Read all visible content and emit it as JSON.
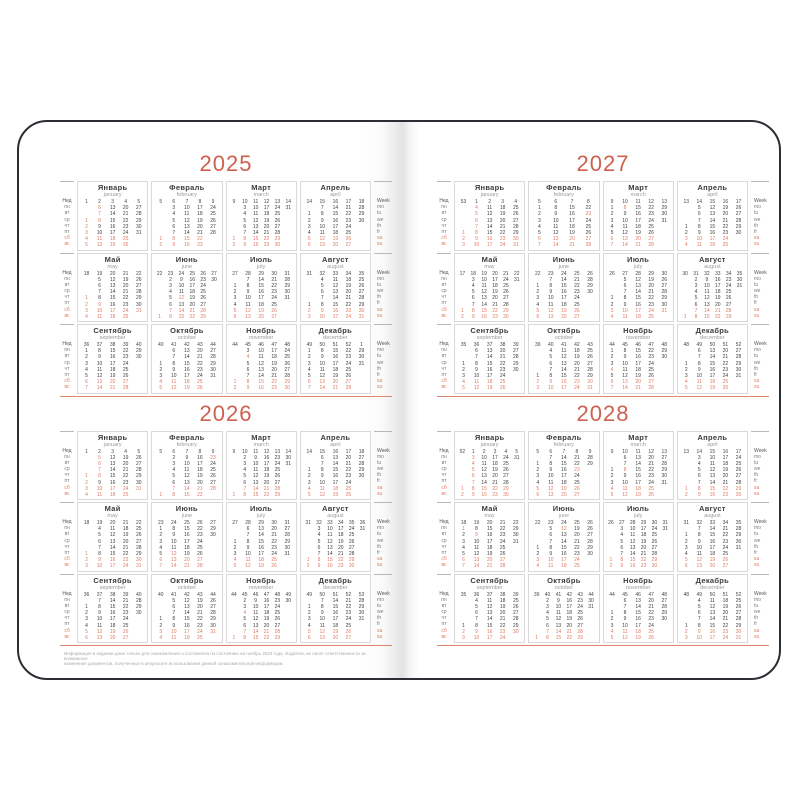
{
  "colors": {
    "accent": "#cd6150",
    "highlight": "#de7b64",
    "ink": "#3f3f3f",
    "muted": "#7d7d7d",
    "border": "#d9d9d9",
    "rule": "#b9b9b9",
    "year_rule": "#d9876f",
    "cover": "#2c2e33",
    "footnote": "#ababab"
  },
  "labels": {
    "week_col_ru": "Нед",
    "week_col_en": "Week",
    "weekdays_ru": [
      "пн",
      "вт",
      "ср",
      "чт",
      "пт",
      "сб",
      "вс"
    ],
    "weekdays_en": [
      "mo",
      "tu",
      "we",
      "th",
      "fr",
      "sa",
      "su"
    ]
  },
  "footnote": {
    "line1": "Информация в издании дана только для ознакомления и составлена по состоянию на ноябрь 2023 года. Издатель не несет ответственности за возможные",
    "line2": "изменения документов, полученные в результате использования данной ознакомительной информации."
  },
  "pages": [
    {
      "host": "pl-years",
      "side": "left",
      "years": [
        {
          "year": "2025",
          "months": [
            {
              "ru": "Январь",
              "en": "january",
              "first_weekday": 2,
              "num_days": 31,
              "week_numbers": [
                1,
                2,
                3,
                4,
                5
              ],
              "orange_days": [
                1,
                2,
                3,
                4,
                5,
                6,
                7,
                8
              ]
            },
            {
              "ru": "Февраль",
              "en": "february",
              "first_weekday": 5,
              "num_days": 28,
              "week_numbers": [
                5,
                6,
                7,
                8,
                9
              ],
              "orange_days": []
            },
            {
              "ru": "Март",
              "en": "march",
              "first_weekday": 5,
              "num_days": 31,
              "week_numbers": [
                9,
                10,
                11,
                12,
                13,
                14
              ],
              "orange_days": []
            },
            {
              "ru": "Апрель",
              "en": "april",
              "first_weekday": 1,
              "num_days": 30,
              "week_numbers": [
                14,
                15,
                16,
                17,
                18
              ],
              "orange_days": []
            },
            {
              "ru": "Май",
              "en": "may",
              "first_weekday": 3,
              "num_days": 31,
              "week_numbers": [
                18,
                19,
                20,
                21,
                22
              ],
              "orange_days": [
                1,
                2,
                9
              ]
            },
            {
              "ru": "Июнь",
              "en": "june",
              "first_weekday": 6,
              "num_days": 30,
              "week_numbers": [
                22,
                23,
                24,
                25,
                26,
                27
              ],
              "orange_days": [
                12
              ]
            },
            {
              "ru": "Июль",
              "en": "july",
              "first_weekday": 1,
              "num_days": 31,
              "week_numbers": [
                27,
                28,
                29,
                30,
                31
              ],
              "orange_days": []
            },
            {
              "ru": "Август",
              "en": "august",
              "first_weekday": 4,
              "num_days": 31,
              "week_numbers": [
                31,
                32,
                33,
                34,
                35
              ],
              "orange_days": []
            },
            {
              "ru": "Сентябрь",
              "en": "september",
              "first_weekday": 0,
              "num_days": 30,
              "week_numbers": [
                36,
                37,
                38,
                39,
                40
              ],
              "orange_days": []
            },
            {
              "ru": "Октябрь",
              "en": "october",
              "first_weekday": 2,
              "num_days": 31,
              "week_numbers": [
                40,
                41,
                42,
                43,
                44
              ],
              "orange_days": []
            },
            {
              "ru": "Ноябрь",
              "en": "november",
              "first_weekday": 5,
              "num_days": 30,
              "week_numbers": [
                44,
                45,
                46,
                47,
                48
              ],
              "orange_days": [
                4
              ]
            },
            {
              "ru": "Декабрь",
              "en": "december",
              "first_weekday": 0,
              "num_days": 31,
              "week_numbers": [
                49,
                50,
                51,
                52,
                1
              ],
              "orange_days": []
            }
          ]
        },
        {
          "year": "2026",
          "months": [
            {
              "ru": "Январь",
              "en": "january",
              "first_weekday": 3,
              "num_days": 31,
              "week_numbers": [
                1,
                2,
                3,
                4,
                5
              ],
              "orange_days": [
                1,
                2,
                3,
                4,
                5,
                6,
                7,
                8
              ]
            },
            {
              "ru": "Февраль",
              "en": "february",
              "first_weekday": 6,
              "num_days": 28,
              "week_numbers": [
                5,
                6,
                7,
                8,
                9
              ],
              "orange_days": [
                23
              ]
            },
            {
              "ru": "Март",
              "en": "march",
              "first_weekday": 6,
              "num_days": 31,
              "week_numbers": [
                9,
                10,
                11,
                12,
                13,
                14
              ],
              "orange_days": []
            },
            {
              "ru": "Апрель",
              "en": "april",
              "first_weekday": 2,
              "num_days": 30,
              "week_numbers": [
                14,
                15,
                16,
                17,
                18
              ],
              "orange_days": []
            },
            {
              "ru": "Май",
              "en": "may",
              "first_weekday": 4,
              "num_days": 31,
              "week_numbers": [
                18,
                19,
                20,
                21,
                22
              ],
              "orange_days": [
                1
              ]
            },
            {
              "ru": "Июнь",
              "en": "june",
              "first_weekday": 0,
              "num_days": 30,
              "week_numbers": [
                23,
                24,
                25,
                26,
                27
              ],
              "orange_days": [
                12
              ]
            },
            {
              "ru": "Июль",
              "en": "july",
              "first_weekday": 2,
              "num_days": 31,
              "week_numbers": [
                27,
                28,
                29,
                30,
                31
              ],
              "orange_days": []
            },
            {
              "ru": "Август",
              "en": "august",
              "first_weekday": 5,
              "num_days": 31,
              "week_numbers": [
                31,
                32,
                33,
                34,
                35,
                36
              ],
              "orange_days": []
            },
            {
              "ru": "Сентябрь",
              "en": "september",
              "first_weekday": 1,
              "num_days": 30,
              "week_numbers": [
                36,
                37,
                38,
                39,
                40
              ],
              "orange_days": []
            },
            {
              "ru": "Октябрь",
              "en": "october",
              "first_weekday": 3,
              "num_days": 31,
              "week_numbers": [
                40,
                41,
                42,
                43,
                44
              ],
              "orange_days": []
            },
            {
              "ru": "Ноябрь",
              "en": "november",
              "first_weekday": 6,
              "num_days": 30,
              "week_numbers": [
                44,
                45,
                46,
                47,
                48,
                49
              ],
              "orange_days": [
                4
              ]
            },
            {
              "ru": "Декабрь",
              "en": "december",
              "first_weekday": 1,
              "num_days": 31,
              "week_numbers": [
                49,
                50,
                51,
                52,
                53
              ],
              "orange_days": []
            }
          ]
        }
      ]
    },
    {
      "host": "pr-years",
      "side": "right",
      "years": [
        {
          "year": "2027",
          "months": [
            {
              "ru": "Январь",
              "en": "january",
              "first_weekday": 4,
              "num_days": 31,
              "week_numbers": [
                53,
                1,
                2,
                3,
                4
              ],
              "orange_days": [
                1,
                2,
                3,
                4,
                5,
                6,
                7,
                8
              ]
            },
            {
              "ru": "Февраль",
              "en": "february",
              "first_weekday": 0,
              "num_days": 28,
              "week_numbers": [
                5,
                6,
                7,
                8
              ],
              "orange_days": [
                23
              ]
            },
            {
              "ru": "Март",
              "en": "march",
              "first_weekday": 0,
              "num_days": 31,
              "week_numbers": [
                9,
                10,
                11,
                12,
                13
              ],
              "orange_days": [
                8
              ]
            },
            {
              "ru": "Апрель",
              "en": "april",
              "first_weekday": 3,
              "num_days": 30,
              "week_numbers": [
                13,
                14,
                15,
                16,
                17
              ],
              "orange_days": []
            },
            {
              "ru": "Май",
              "en": "may",
              "first_weekday": 5,
              "num_days": 31,
              "week_numbers": [
                17,
                18,
                19,
                20,
                21,
                22
              ],
              "orange_days": []
            },
            {
              "ru": "Июнь",
              "en": "june",
              "first_weekday": 1,
              "num_days": 30,
              "week_numbers": [
                22,
                23,
                24,
                25,
                26
              ],
              "orange_days": []
            },
            {
              "ru": "Июль",
              "en": "july",
              "first_weekday": 3,
              "num_days": 31,
              "week_numbers": [
                26,
                27,
                28,
                29,
                30
              ],
              "orange_days": []
            },
            {
              "ru": "Август",
              "en": "august",
              "first_weekday": 6,
              "num_days": 31,
              "week_numbers": [
                30,
                31,
                32,
                33,
                34,
                35
              ],
              "orange_days": []
            },
            {
              "ru": "Сентябрь",
              "en": "september",
              "first_weekday": 2,
              "num_days": 30,
              "week_numbers": [
                35,
                36,
                37,
                38,
                39
              ],
              "orange_days": []
            },
            {
              "ru": "Октябрь",
              "en": "october",
              "first_weekday": 4,
              "num_days": 31,
              "week_numbers": [
                39,
                40,
                41,
                42,
                43
              ],
              "orange_days": []
            },
            {
              "ru": "Ноябрь",
              "en": "november",
              "first_weekday": 0,
              "num_days": 30,
              "week_numbers": [
                44,
                45,
                46,
                47,
                48
              ],
              "orange_days": [
                4
              ]
            },
            {
              "ru": "Декабрь",
              "en": "december",
              "first_weekday": 2,
              "num_days": 31,
              "week_numbers": [
                48,
                49,
                50,
                51,
                52
              ],
              "orange_days": []
            }
          ]
        },
        {
          "year": "2028",
          "months": [
            {
              "ru": "Январь",
              "en": "january",
              "first_weekday": 5,
              "num_days": 31,
              "week_numbers": [
                52,
                1,
                2,
                3,
                4,
                5
              ],
              "orange_days": [
                1,
                2,
                3,
                4,
                5,
                6,
                7,
                8
              ]
            },
            {
              "ru": "Февраль",
              "en": "february",
              "first_weekday": 1,
              "num_days": 29,
              "week_numbers": [
                5,
                6,
                7,
                8,
                9
              ],
              "orange_days": [
                23
              ]
            },
            {
              "ru": "Март",
              "en": "march",
              "first_weekday": 2,
              "num_days": 31,
              "week_numbers": [
                9,
                10,
                11,
                12,
                13
              ],
              "orange_days": [
                8
              ]
            },
            {
              "ru": "Апрель",
              "en": "april",
              "first_weekday": 5,
              "num_days": 30,
              "week_numbers": [
                13,
                14,
                15,
                16,
                17
              ],
              "orange_days": []
            },
            {
              "ru": "Май",
              "en": "may",
              "first_weekday": 0,
              "num_days": 31,
              "week_numbers": [
                18,
                19,
                20,
                21,
                22
              ],
              "orange_days": [
                1,
                9
              ]
            },
            {
              "ru": "Июнь",
              "en": "june",
              "first_weekday": 3,
              "num_days": 30,
              "week_numbers": [
                22,
                23,
                24,
                25,
                26
              ],
              "orange_days": [
                12
              ]
            },
            {
              "ru": "Июль",
              "en": "july",
              "first_weekday": 5,
              "num_days": 31,
              "week_numbers": [
                26,
                27,
                28,
                29,
                30,
                31
              ],
              "orange_days": []
            },
            {
              "ru": "Август",
              "en": "august",
              "first_weekday": 1,
              "num_days": 31,
              "week_numbers": [
                31,
                32,
                33,
                34,
                35
              ],
              "orange_days": []
            },
            {
              "ru": "Сентябрь",
              "en": "september",
              "first_weekday": 4,
              "num_days": 30,
              "week_numbers": [
                35,
                36,
                37,
                38,
                39
              ],
              "orange_days": []
            },
            {
              "ru": "Октябрь",
              "en": "october",
              "first_weekday": 6,
              "num_days": 31,
              "week_numbers": [
                39,
                40,
                41,
                42,
                43,
                44
              ],
              "orange_days": []
            },
            {
              "ru": "Ноябрь",
              "en": "november",
              "first_weekday": 2,
              "num_days": 30,
              "week_numbers": [
                44,
                45,
                46,
                47,
                48
              ],
              "orange_days": []
            },
            {
              "ru": "Декабрь",
              "en": "december",
              "first_weekday": 4,
              "num_days": 31,
              "week_numbers": [
                48,
                49,
                50,
                51,
                52
              ],
              "orange_days": []
            }
          ]
        }
      ]
    }
  ]
}
